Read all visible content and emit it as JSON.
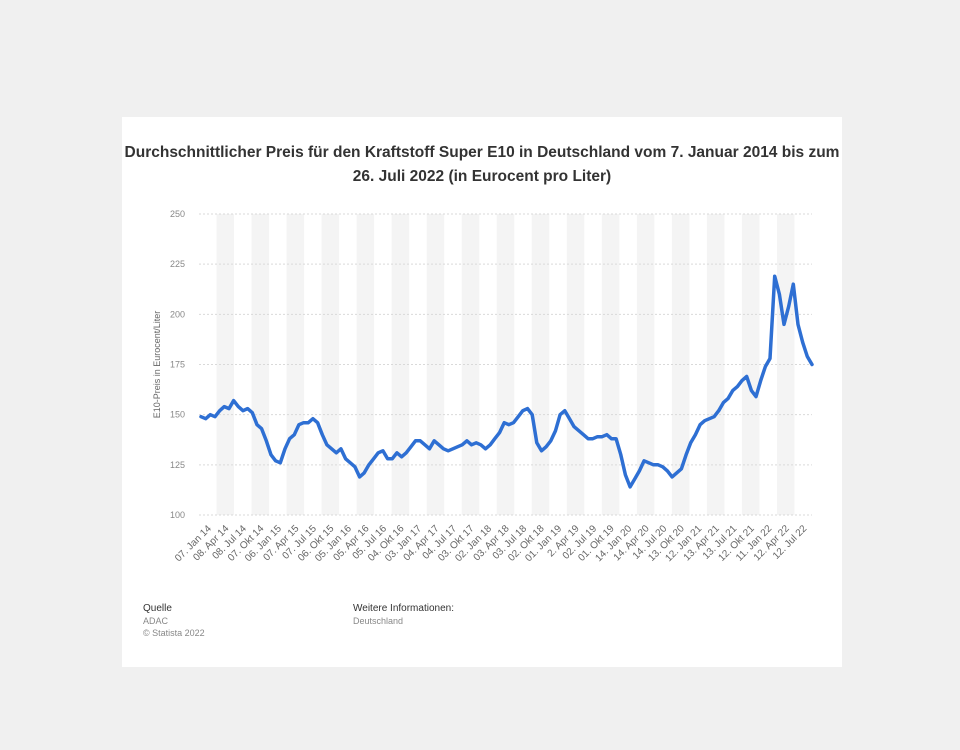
{
  "title": "Durchschnittlicher Preis für den Kraftstoff Super E10 in Deutschland vom 7. Januar 2014 bis zum 26. Juli 2022 (in Eurocent pro Liter)",
  "footer": {
    "source_heading": "Quelle",
    "source_lines": [
      "ADAC",
      "© Statista 2022"
    ],
    "info_heading": "Weitere Informationen:",
    "info_lines": [
      "Deutschland"
    ]
  },
  "colors": {
    "line": "#2e6fd3",
    "background": "#f0f0f0",
    "panel": "#ffffff",
    "band": "#f4f4f4"
  },
  "chart_data": {
    "type": "line",
    "title": "Durchschnittlicher Preis für den Kraftstoff Super E10 in Deutschland vom 7. Januar 2014 bis zum 26. Juli 2022 (in Eurocent pro Liter)",
    "xlabel": "",
    "ylabel": "E10-Preis in Eurocent/Liter",
    "ylim": [
      100,
      250
    ],
    "yticks": [
      100,
      125,
      150,
      175,
      200,
      225,
      250
    ],
    "grid": true,
    "xtick_labels": [
      "07. Jan 14",
      "08. Apr 14",
      "08. Jul 14",
      "07. Okt 14",
      "06. Jan 15",
      "07. Apr 15",
      "07. Jul 15",
      "06. Okt 15",
      "05. Jan 16",
      "05. Apr 16",
      "05. Jul 16",
      "04. Okt 16",
      "03. Jan 17",
      "04. Apr 17",
      "04. Jul 17",
      "03. Okt 17",
      "02. Jan 18",
      "03. Apr 18",
      "03. Jul 18",
      "02. Okt 18",
      "01. Jan 19",
      "2. Apr 19",
      "02. Jul 19",
      "01. Okt 19",
      "14. Jan 20",
      "14. Apr 20",
      "14. Jul 20",
      "13. Okt 20",
      "12. Jan 21",
      "13. Apr 21",
      "13. Jul 21",
      "12. Okt 21",
      "11. Jan 22",
      "12. Apr 22",
      "12. Jul 22"
    ],
    "series": [
      {
        "values": [
          149,
          148,
          150,
          149,
          152,
          154,
          153,
          157,
          154,
          152,
          153,
          151,
          145,
          143,
          137,
          130,
          127,
          126,
          133,
          138,
          140,
          145,
          146,
          146,
          148,
          146,
          140,
          135,
          133,
          131,
          133,
          128,
          126,
          124,
          119,
          121,
          125,
          128,
          131,
          132,
          128,
          128,
          131,
          129,
          131,
          134,
          137,
          137,
          135,
          133,
          137,
          135,
          133,
          132,
          133,
          134,
          135,
          137,
          135,
          136,
          135,
          133,
          135,
          138,
          141,
          146,
          145,
          146,
          149,
          152,
          153,
          150,
          136,
          132,
          134,
          137,
          142,
          150,
          152,
          148,
          144,
          142,
          140,
          138,
          138,
          139,
          139,
          140,
          138,
          138,
          130,
          120,
          114,
          118,
          122,
          127,
          126,
          125,
          125,
          124,
          122,
          119,
          121,
          123,
          130,
          136,
          140,
          145,
          147,
          148,
          149,
          152,
          156,
          158,
          162,
          164,
          167,
          169,
          162,
          159,
          167,
          174,
          178,
          219,
          210,
          195,
          204,
          215,
          195,
          186,
          179,
          175
        ]
      }
    ]
  }
}
